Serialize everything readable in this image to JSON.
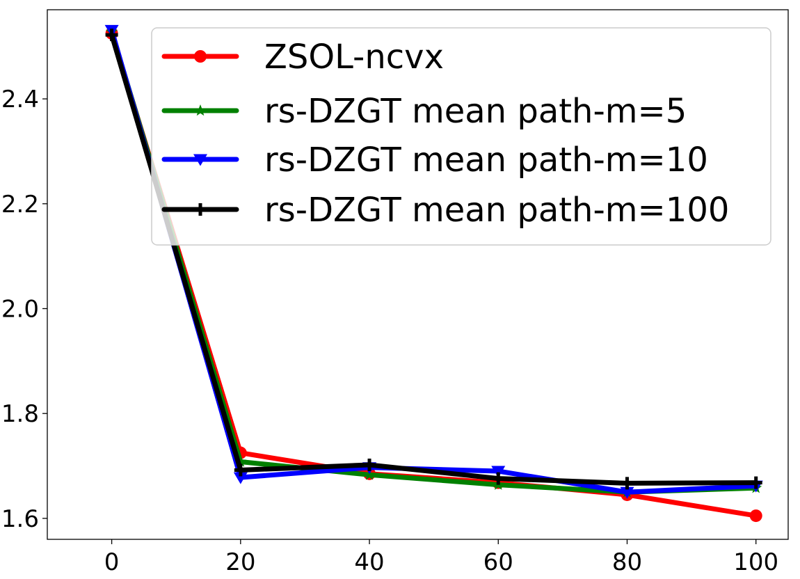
{
  "chart_data": {
    "type": "line",
    "title": "",
    "xlabel": "",
    "ylabel": "",
    "x": [
      0,
      20,
      40,
      60,
      80,
      100
    ],
    "xlim": [
      -10,
      105
    ],
    "ylim": [
      1.56,
      2.57
    ],
    "xticks": [
      0,
      20,
      40,
      60,
      80,
      100
    ],
    "yticks": [
      1.6,
      1.8,
      2.0,
      2.2,
      2.4
    ],
    "xtick_labels": [
      "0",
      "20",
      "40",
      "60",
      "80",
      "100"
    ],
    "ytick_labels": [
      "1.6",
      "1.8",
      "2.0",
      "2.2",
      "2.4"
    ],
    "grid": false,
    "legend_position": "top-right",
    "series": [
      {
        "name": "ZSOL-ncvx",
        "color": "#ff0000",
        "marker": "circle",
        "values": [
          2.525,
          1.725,
          1.685,
          1.668,
          1.645,
          1.605
        ]
      },
      {
        "name": "rs-DZGT mean path-m=5",
        "color": "#008000",
        "marker": "star",
        "values": [
          2.528,
          1.708,
          1.683,
          1.664,
          1.65,
          1.658
        ]
      },
      {
        "name": "rs-DZGT mean path-m=10",
        "color": "#0000ff",
        "marker": "triangle-down",
        "values": [
          2.531,
          1.678,
          1.697,
          1.69,
          1.65,
          1.662
        ]
      },
      {
        "name": "rs-DZGT mean path-m=100",
        "color": "#000000",
        "marker": "plus",
        "values": [
          2.522,
          1.692,
          1.702,
          1.676,
          1.667,
          1.668
        ]
      }
    ]
  }
}
